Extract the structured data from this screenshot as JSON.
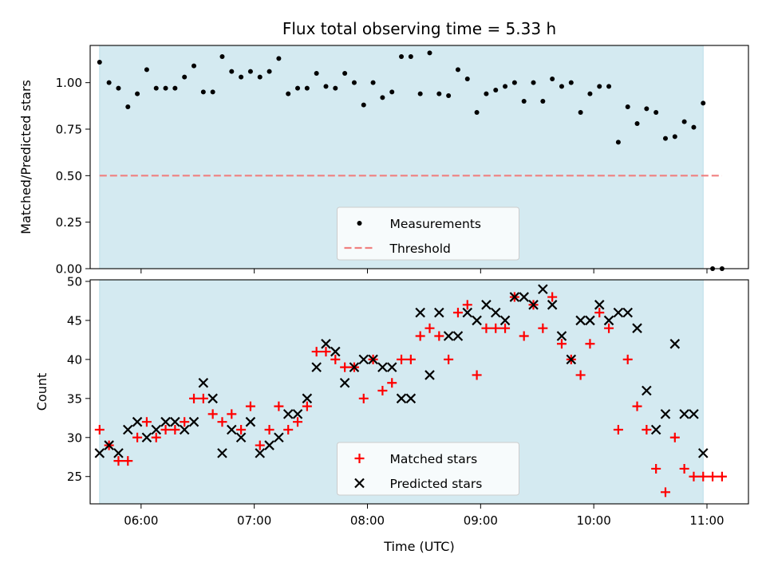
{
  "chart_data": [
    {
      "type": "scatter",
      "title": "Flux total observing time = 5.33 h",
      "xlabel": "",
      "ylabel": "Matched/Predicted stars",
      "x_unit": "time UTC (HH:MM)",
      "xlim": [
        "05:33",
        "11:22"
      ],
      "ylim": [
        0,
        1.2
      ],
      "yticks": [
        "0.00",
        "0.25",
        "0.50",
        "0.75",
        "1.00"
      ],
      "observing_span": [
        "05:38",
        "10:58"
      ],
      "observing_span_color": "#d4eaf1",
      "grid": false,
      "legend_position": "bottom-center",
      "series": [
        {
          "name": "Measurements",
          "marker": "dot",
          "color": "#000000",
          "points": [
            [
              "05:38",
              1.11
            ],
            [
              "05:43",
              1.0
            ],
            [
              "05:48",
              0.97
            ],
            [
              "05:53",
              0.87
            ],
            [
              "05:58",
              0.94
            ],
            [
              "06:03",
              1.07
            ],
            [
              "06:08",
              0.97
            ],
            [
              "06:13",
              0.97
            ],
            [
              "06:18",
              0.97
            ],
            [
              "06:23",
              1.03
            ],
            [
              "06:28",
              1.09
            ],
            [
              "06:33",
              0.95
            ],
            [
              "06:38",
              0.95
            ],
            [
              "06:43",
              1.14
            ],
            [
              "06:48",
              1.06
            ],
            [
              "06:53",
              1.03
            ],
            [
              "06:58",
              1.06
            ],
            [
              "07:03",
              1.03
            ],
            [
              "07:08",
              1.06
            ],
            [
              "07:13",
              1.13
            ],
            [
              "07:18",
              0.94
            ],
            [
              "07:23",
              0.97
            ],
            [
              "07:28",
              0.97
            ],
            [
              "07:33",
              1.05
            ],
            [
              "07:38",
              0.98
            ],
            [
              "07:43",
              0.97
            ],
            [
              "07:48",
              1.05
            ],
            [
              "07:53",
              1.0
            ],
            [
              "07:58",
              0.88
            ],
            [
              "08:03",
              1.0
            ],
            [
              "08:08",
              0.92
            ],
            [
              "08:13",
              0.95
            ],
            [
              "08:18",
              1.14
            ],
            [
              "08:23",
              1.14
            ],
            [
              "08:28",
              0.94
            ],
            [
              "08:33",
              1.16
            ],
            [
              "08:38",
              0.94
            ],
            [
              "08:43",
              0.93
            ],
            [
              "08:48",
              1.07
            ],
            [
              "08:53",
              1.02
            ],
            [
              "08:58",
              0.84
            ],
            [
              "09:03",
              0.94
            ],
            [
              "09:08",
              0.96
            ],
            [
              "09:13",
              0.98
            ],
            [
              "09:18",
              1.0
            ],
            [
              "09:23",
              0.9
            ],
            [
              "09:28",
              1.0
            ],
            [
              "09:33",
              0.9
            ],
            [
              "09:38",
              1.02
            ],
            [
              "09:43",
              0.98
            ],
            [
              "09:48",
              1.0
            ],
            [
              "09:53",
              0.84
            ],
            [
              "09:58",
              0.94
            ],
            [
              "10:03",
              0.98
            ],
            [
              "10:08",
              0.98
            ],
            [
              "10:13",
              0.68
            ],
            [
              "10:18",
              0.87
            ],
            [
              "10:23",
              0.78
            ],
            [
              "10:28",
              0.86
            ],
            [
              "10:33",
              0.84
            ],
            [
              "10:38",
              0.7
            ],
            [
              "10:43",
              0.71
            ],
            [
              "10:48",
              0.79
            ],
            [
              "10:53",
              0.76
            ],
            [
              "10:58",
              0.89
            ],
            [
              "11:03",
              0.0
            ],
            [
              "11:08",
              0.0
            ]
          ]
        },
        {
          "name": "Threshold",
          "line_style": "dashed",
          "color": "#f08080",
          "points": [
            [
              "05:38",
              0.5
            ],
            [
              "11:08",
              0.5
            ]
          ]
        }
      ]
    },
    {
      "type": "scatter",
      "title": "",
      "xlabel": "Time (UTC)",
      "ylabel": "Count",
      "x_unit": "time UTC (HH:MM)",
      "xlim": [
        "05:33",
        "11:22"
      ],
      "ylim": [
        21.5,
        50.2
      ],
      "xticks": [
        "06:00",
        "07:00",
        "08:00",
        "09:00",
        "10:00",
        "11:00"
      ],
      "yticks": [
        "25",
        "30",
        "35",
        "40",
        "45",
        "50"
      ],
      "observing_span": [
        "05:38",
        "10:58"
      ],
      "observing_span_color": "#d4eaf1",
      "grid": false,
      "legend_position": "bottom-center",
      "series": [
        {
          "name": "Matched stars",
          "marker": "plus",
          "color": "#ff0000",
          "points": [
            [
              "05:38",
              31
            ],
            [
              "05:43",
              29
            ],
            [
              "05:48",
              27
            ],
            [
              "05:53",
              27
            ],
            [
              "05:58",
              30
            ],
            [
              "06:03",
              32
            ],
            [
              "06:08",
              30
            ],
            [
              "06:13",
              31
            ],
            [
              "06:18",
              31
            ],
            [
              "06:23",
              32
            ],
            [
              "06:28",
              35
            ],
            [
              "06:33",
              35
            ],
            [
              "06:38",
              33
            ],
            [
              "06:43",
              32
            ],
            [
              "06:48",
              33
            ],
            [
              "06:53",
              31
            ],
            [
              "06:58",
              34
            ],
            [
              "07:03",
              29
            ],
            [
              "07:08",
              31
            ],
            [
              "07:13",
              34
            ],
            [
              "07:18",
              31
            ],
            [
              "07:23",
              32
            ],
            [
              "07:28",
              34
            ],
            [
              "07:33",
              41
            ],
            [
              "07:38",
              41
            ],
            [
              "07:43",
              40
            ],
            [
              "07:48",
              39
            ],
            [
              "07:53",
              39
            ],
            [
              "07:58",
              35
            ],
            [
              "08:03",
              40
            ],
            [
              "08:08",
              36
            ],
            [
              "08:13",
              37
            ],
            [
              "08:18",
              40
            ],
            [
              "08:23",
              40
            ],
            [
              "08:28",
              43
            ],
            [
              "08:33",
              44
            ],
            [
              "08:38",
              43
            ],
            [
              "08:43",
              40
            ],
            [
              "08:48",
              46
            ],
            [
              "08:53",
              47
            ],
            [
              "08:58",
              38
            ],
            [
              "09:03",
              44
            ],
            [
              "09:08",
              44
            ],
            [
              "09:13",
              44
            ],
            [
              "09:18",
              48
            ],
            [
              "09:23",
              43
            ],
            [
              "09:28",
              47
            ],
            [
              "09:33",
              44
            ],
            [
              "09:38",
              48
            ],
            [
              "09:43",
              42
            ],
            [
              "09:48",
              40
            ],
            [
              "09:53",
              38
            ],
            [
              "09:58",
              42
            ],
            [
              "10:03",
              46
            ],
            [
              "10:08",
              44
            ],
            [
              "10:13",
              31
            ],
            [
              "10:18",
              40
            ],
            [
              "10:23",
              34
            ],
            [
              "10:28",
              31
            ],
            [
              "10:33",
              26
            ],
            [
              "10:38",
              23
            ],
            [
              "10:43",
              30
            ],
            [
              "10:48",
              26
            ],
            [
              "10:53",
              25
            ],
            [
              "10:58",
              25
            ],
            [
              "11:03",
              25
            ],
            [
              "11:08",
              25
            ]
          ]
        },
        {
          "name": "Predicted stars",
          "marker": "x",
          "color": "#000000",
          "points": [
            [
              "05:38",
              28
            ],
            [
              "05:43",
              29
            ],
            [
              "05:48",
              28
            ],
            [
              "05:53",
              31
            ],
            [
              "05:58",
              32
            ],
            [
              "06:03",
              30
            ],
            [
              "06:08",
              31
            ],
            [
              "06:13",
              32
            ],
            [
              "06:18",
              32
            ],
            [
              "06:23",
              31
            ],
            [
              "06:28",
              32
            ],
            [
              "06:33",
              37
            ],
            [
              "06:38",
              35
            ],
            [
              "06:43",
              28
            ],
            [
              "06:48",
              31
            ],
            [
              "06:53",
              30
            ],
            [
              "06:58",
              32
            ],
            [
              "07:03",
              28
            ],
            [
              "07:08",
              29
            ],
            [
              "07:13",
              30
            ],
            [
              "07:18",
              33
            ],
            [
              "07:23",
              33
            ],
            [
              "07:28",
              35
            ],
            [
              "07:33",
              39
            ],
            [
              "07:38",
              42
            ],
            [
              "07:43",
              41
            ],
            [
              "07:48",
              37
            ],
            [
              "07:53",
              39
            ],
            [
              "07:58",
              40
            ],
            [
              "08:03",
              40
            ],
            [
              "08:08",
              39
            ],
            [
              "08:13",
              39
            ],
            [
              "08:18",
              35
            ],
            [
              "08:23",
              35
            ],
            [
              "08:28",
              46
            ],
            [
              "08:33",
              38
            ],
            [
              "08:38",
              46
            ],
            [
              "08:43",
              43
            ],
            [
              "08:48",
              43
            ],
            [
              "08:53",
              46
            ],
            [
              "08:58",
              45
            ],
            [
              "09:03",
              47
            ],
            [
              "09:08",
              46
            ],
            [
              "09:13",
              45
            ],
            [
              "09:18",
              48
            ],
            [
              "09:23",
              48
            ],
            [
              "09:28",
              47
            ],
            [
              "09:33",
              49
            ],
            [
              "09:38",
              47
            ],
            [
              "09:43",
              43
            ],
            [
              "09:48",
              40
            ],
            [
              "09:53",
              45
            ],
            [
              "09:58",
              45
            ],
            [
              "10:03",
              47
            ],
            [
              "10:08",
              45
            ],
            [
              "10:13",
              46
            ],
            [
              "10:18",
              46
            ],
            [
              "10:23",
              44
            ],
            [
              "10:28",
              36
            ],
            [
              "10:33",
              31
            ],
            [
              "10:38",
              33
            ],
            [
              "10:43",
              42
            ],
            [
              "10:48",
              33
            ],
            [
              "10:53",
              33
            ],
            [
              "10:58",
              28
            ]
          ]
        }
      ]
    }
  ]
}
